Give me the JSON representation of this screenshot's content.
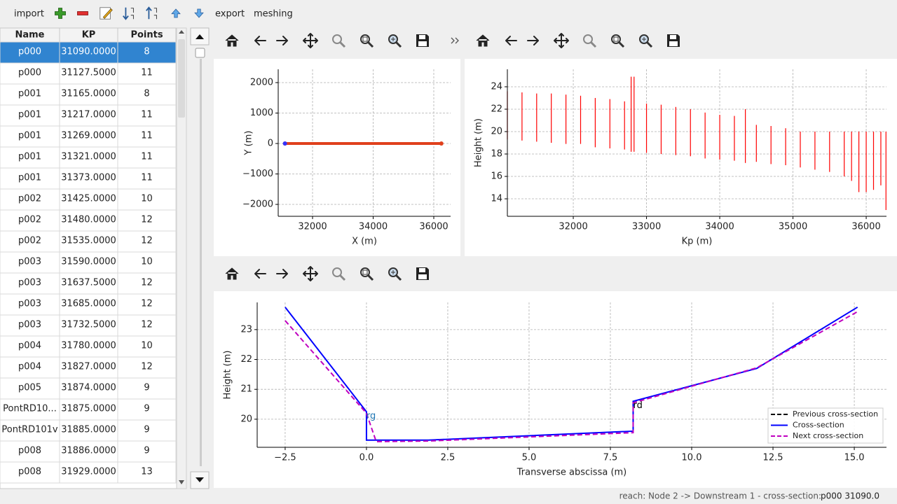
{
  "toolbar": [
    "import",
    "export",
    "meshing"
  ],
  "table": {
    "columns": [
      "Name",
      "KP",
      "Points"
    ],
    "rows": [
      [
        "p000",
        "31090.0000",
        "8"
      ],
      [
        "p000",
        "31127.5000",
        "11"
      ],
      [
        "p001",
        "31165.0000",
        "8"
      ],
      [
        "p001",
        "31217.0000",
        "11"
      ],
      [
        "p001",
        "31269.0000",
        "11"
      ],
      [
        "p001",
        "31321.0000",
        "11"
      ],
      [
        "p001",
        "31373.0000",
        "11"
      ],
      [
        "p002",
        "31425.0000",
        "10"
      ],
      [
        "p002",
        "31480.0000",
        "12"
      ],
      [
        "p002",
        "31535.0000",
        "12"
      ],
      [
        "p003",
        "31590.0000",
        "10"
      ],
      [
        "p003",
        "31637.5000",
        "12"
      ],
      [
        "p003",
        "31685.0000",
        "12"
      ],
      [
        "p003",
        "31732.5000",
        "12"
      ],
      [
        "p004",
        "31780.0000",
        "10"
      ],
      [
        "p004",
        "31827.0000",
        "12"
      ],
      [
        "p005",
        "31874.0000",
        "9"
      ],
      [
        "PontRD10...",
        "31875.0000",
        "9"
      ],
      [
        "PontRD101v",
        "31885.0000",
        "9"
      ],
      [
        "p008",
        "31886.0000",
        "9"
      ],
      [
        "p008",
        "31929.0000",
        "13"
      ]
    ]
  },
  "chart_data": [
    {
      "type": "line",
      "xlabel": "X (m)",
      "ylabel": "Y (m)",
      "grid": true,
      "markers": true,
      "xlim": [
        30867,
        36555
      ],
      "ylim": [
        -2391,
        2437
      ],
      "xticks": [
        32000,
        34000,
        36000
      ],
      "yticks": [
        {
          "value": -2000,
          "label": "−2000"
        },
        {
          "value": -1000,
          "label": "−1000"
        },
        0,
        1000,
        2000
      ],
      "series": [
        {
          "color": "#e0401c",
          "x": [
            31090,
            36250
          ],
          "values": [
            0,
            0
          ]
        },
        {
          "color": "#3333ff",
          "x": [
            31090
          ],
          "values": [
            0
          ]
        }
      ]
    },
    {
      "type": "vlines",
      "xlabel": "Kp (m)",
      "ylabel": "Height (m)",
      "grid": true,
      "color": "#ff0000",
      "xlim": [
        31100,
        36277
      ],
      "ylim": [
        12.44,
        25.56
      ],
      "xticks": [
        32000,
        33000,
        34000,
        35000,
        36000
      ],
      "yticks": [
        14,
        16,
        18,
        20,
        22,
        24
      ],
      "x": [
        31100,
        31300,
        31500,
        31700,
        31900,
        32100,
        32300,
        32500,
        32700,
        32790,
        32830,
        33000,
        33200,
        33400,
        33600,
        33800,
        34000,
        34200,
        34350,
        34500,
        34700,
        34900,
        35100,
        35300,
        35500,
        35700,
        35800,
        35900,
        36000,
        36100,
        36200,
        36270
      ],
      "high": [
        23.6,
        23.5,
        23.4,
        23.4,
        23.3,
        23.2,
        23.0,
        22.9,
        22.7,
        24.9,
        24.9,
        22.5,
        22.4,
        22.2,
        22.0,
        21.7,
        21.5,
        21.4,
        22.0,
        20.6,
        20.5,
        20.3,
        20.0,
        20.0,
        20.0,
        20.0,
        20.0,
        20.0,
        20.0,
        20.0,
        20.0,
        20.0
      ],
      "low": [
        19.3,
        19.2,
        19.1,
        19.0,
        18.9,
        18.9,
        18.6,
        18.5,
        18.4,
        18.2,
        18.2,
        18.1,
        18.0,
        17.9,
        17.8,
        17.6,
        17.5,
        17.4,
        17.2,
        17.3,
        17.1,
        17.0,
        16.8,
        16.6,
        16.4,
        16.0,
        15.6,
        14.6,
        14.6,
        14.8,
        15.2,
        13.0
      ]
    },
    {
      "type": "line",
      "xlabel": "Transverse abscissa (m)",
      "ylabel": "Height (m)",
      "grid": true,
      "legend": "lower right",
      "xlim": [
        -3.36,
        15.99
      ],
      "ylim": [
        19.06,
        23.91
      ],
      "xticks": [
        {
          "value": -2.5,
          "label": "−2.5"
        },
        {
          "value": 0,
          "label": "0.0"
        },
        {
          "value": 2.5,
          "label": "2.5"
        },
        {
          "value": 5,
          "label": "5.0"
        },
        {
          "value": 7.5,
          "label": "7.5"
        },
        {
          "value": 10,
          "label": "10.0"
        },
        {
          "value": 12.5,
          "label": "12.5"
        },
        {
          "value": 15,
          "label": "15.0"
        }
      ],
      "yticks": [
        20,
        21,
        22,
        23
      ],
      "series": [
        {
          "name": "Previous cross-section",
          "color": "#000000",
          "dash": true,
          "x": [],
          "values": []
        },
        {
          "name": "Cross-section",
          "color": "#0000ff",
          "dash": false,
          "x": [
            -2.5,
            0,
            0,
            1.9,
            8.2,
            8.2,
            12,
            15.1
          ],
          "values": [
            23.75,
            20.25,
            19.3,
            19.3,
            19.6,
            20.6,
            21.7,
            23.75
          ]
        },
        {
          "name": "Next cross-section",
          "color": "#bf00bf",
          "dash": true,
          "x": [
            -2.5,
            0,
            0.3,
            1.9,
            8.2,
            8.2,
            12,
            15.1
          ],
          "values": [
            23.3,
            20.2,
            19.25,
            19.27,
            19.55,
            20.55,
            21.72,
            23.6
          ]
        }
      ],
      "annotations": [
        {
          "text": "rg",
          "x": 0,
          "y": 20.1,
          "color": "#1f77b4"
        },
        {
          "text": "rd",
          "x": 8.2,
          "y": 20.45,
          "color": "#000000"
        }
      ]
    }
  ],
  "status": {
    "label": "reach: Node 2 -> Downstream 1 - cross-section:",
    "value": "p000 31090.0"
  }
}
